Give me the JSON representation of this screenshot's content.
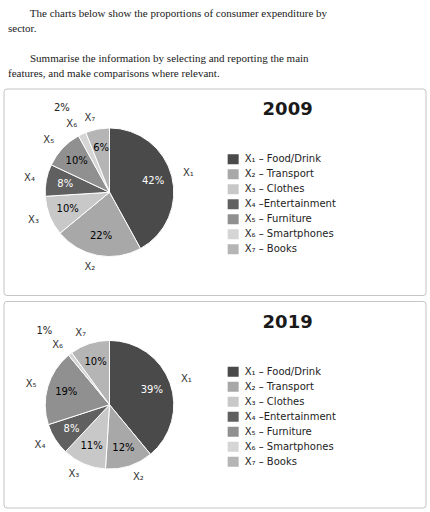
{
  "chart_data": [
    {
      "type": "pie",
      "title": "2009",
      "annotations": [
        "        The charts below show the proportions of consumer expenditure by\nsector.",
        "        Summarise the information by selecting and reporting the main\nfeatures, and make comparisons where relevant."
      ],
      "categories": [
        "X₁",
        "X₂",
        "X₃",
        "X₄",
        "X₅",
        "X₆",
        "X₇"
      ],
      "values": [
        42,
        22,
        10,
        8,
        10,
        2,
        6
      ],
      "value_labels": [
        "42%",
        "22%",
        "10%",
        "8%",
        "10%",
        "2%",
        "6%"
      ],
      "legend_labels": [
        "X₁ – Food/Drink",
        "X₂ – Transport",
        "X₃ – Clothes",
        "X₄ –Entertainment",
        "X₅ – Furniture",
        "X₆ – Smartphones",
        "X₇ – Books"
      ],
      "colors": [
        "#4a4a4a",
        "#a8a8a8",
        "#c8c8c8",
        "#606060",
        "#909090",
        "#d5d5d5",
        "#b5b5b5"
      ],
      "data_labels": true,
      "legend": "right"
    },
    {
      "type": "pie",
      "title": "2019",
      "categories": [
        "X₁",
        "X₂",
        "X₃",
        "X₄",
        "X₅",
        "X₆",
        "X₇"
      ],
      "values": [
        39,
        12,
        11,
        8,
        19,
        1,
        10
      ],
      "value_labels": [
        "39%",
        "12%",
        "11%",
        "8%",
        "19%",
        "1%",
        "10%"
      ],
      "legend_labels": [
        "X₁ – Food/Drink",
        "X₂ – Transport",
        "X₃ – Clothes",
        "X₄ –Entertainment",
        "X₅ – Furniture",
        "X₆ – Smartphones",
        "X₇ – Books"
      ],
      "colors": [
        "#4a4a4a",
        "#a8a8a8",
        "#c8c8c8",
        "#606060",
        "#909090",
        "#d5d5d5",
        "#b5b5b5"
      ],
      "data_labels": true,
      "legend": "right"
    }
  ]
}
